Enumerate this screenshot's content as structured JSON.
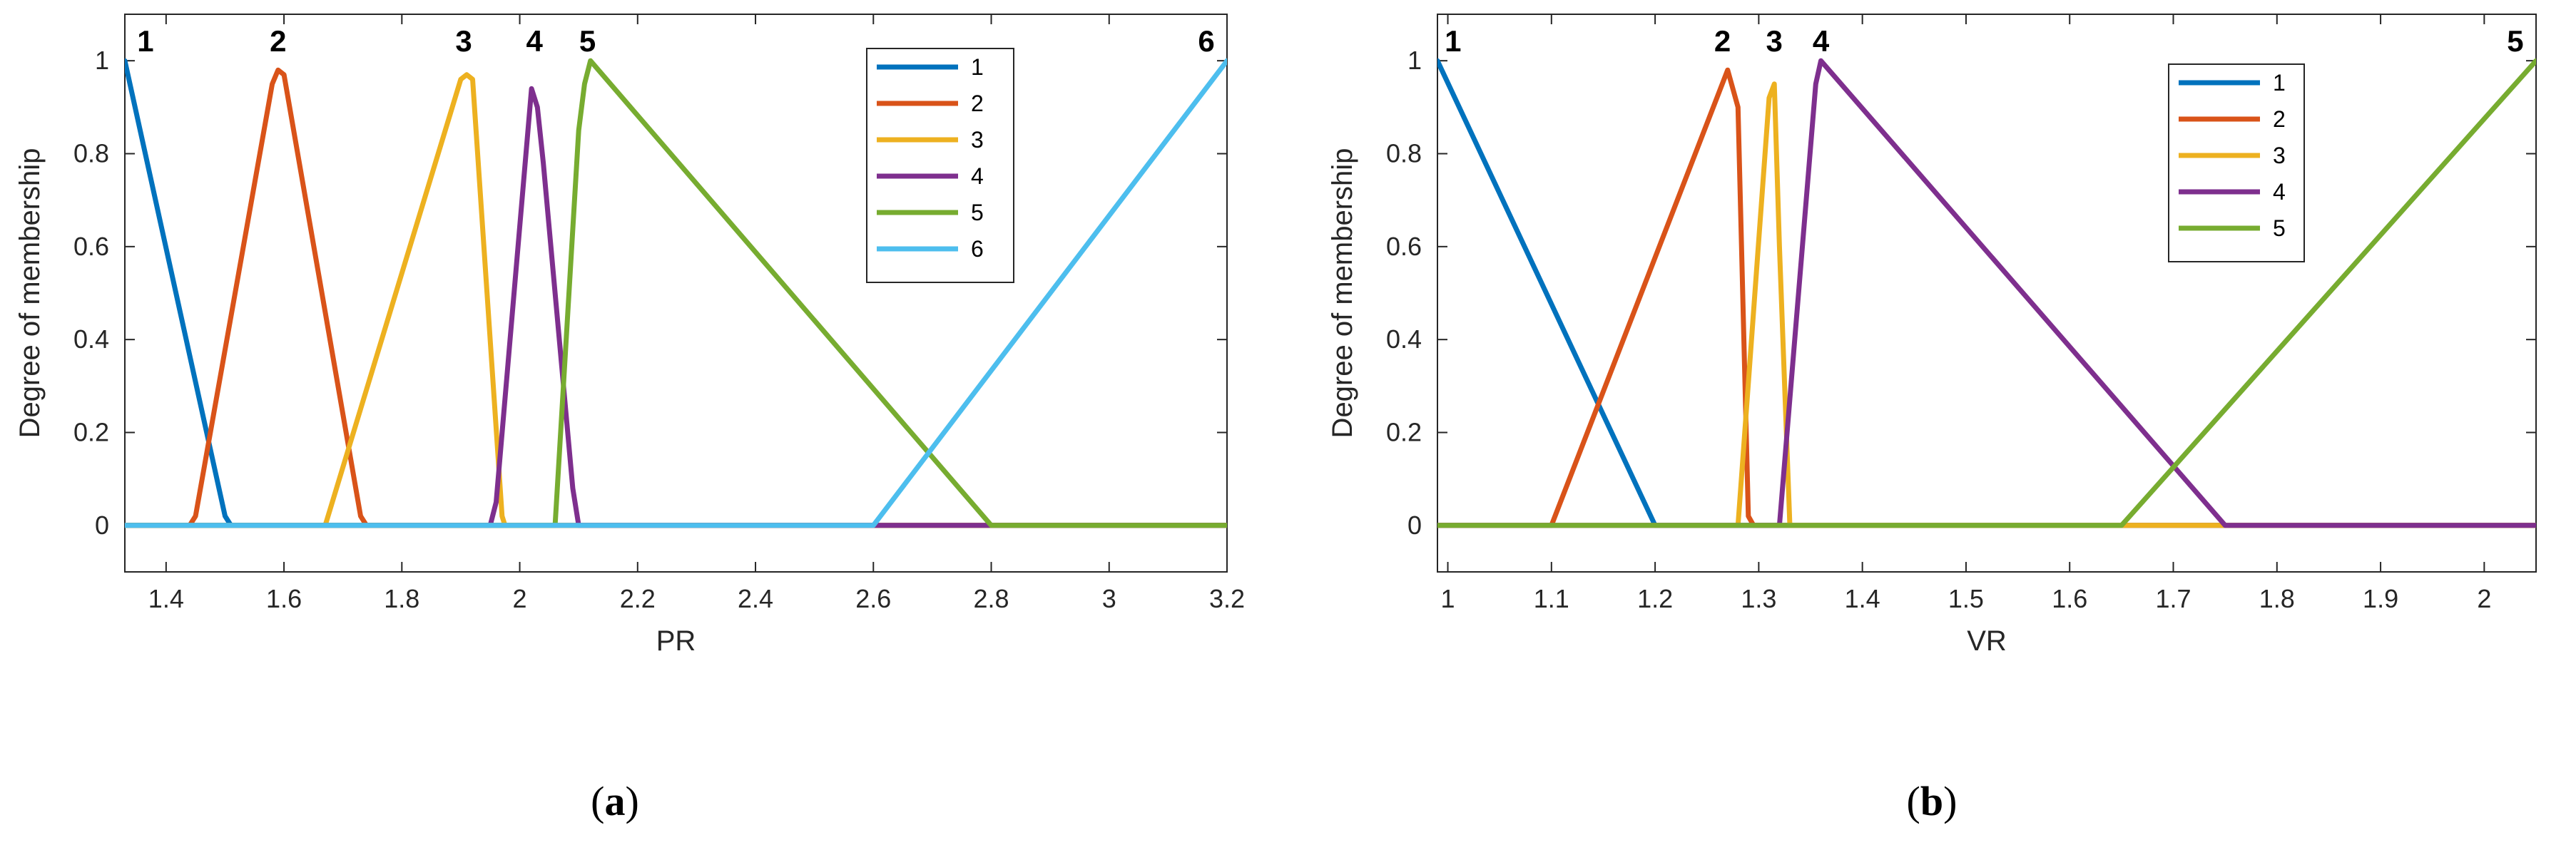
{
  "chart_data": [
    {
      "type": "line",
      "panel_label": "a",
      "caption_open": "(",
      "caption_close": ")",
      "xlabel": "PR",
      "ylabel": "Degree of membership",
      "xlim": [
        1.33,
        3.2
      ],
      "ylim": [
        -0.1,
        1.1
      ],
      "xticks": [
        1.4,
        1.6,
        1.8,
        2,
        2.2,
        2.4,
        2.6,
        2.8,
        3,
        3.2
      ],
      "xtick_labels": [
        "1.4",
        "1.6",
        "1.8",
        "2",
        "2.2",
        "2.4",
        "2.6",
        "2.8",
        "3",
        "3.2"
      ],
      "yticks": [
        0,
        0.2,
        0.4,
        0.6,
        0.8,
        1
      ],
      "ytick_labels": [
        "0",
        "0.2",
        "0.4",
        "0.6",
        "0.8",
        "1"
      ],
      "legend_position": "top-right",
      "series": [
        {
          "name": "1",
          "color": "#0072BD",
          "x": [
            1.33,
            1.5,
            1.51,
            3.2
          ],
          "y": [
            1,
            0.02,
            0,
            0
          ]
        },
        {
          "name": "2",
          "color": "#D95319",
          "x": [
            1.33,
            1.44,
            1.45,
            1.58,
            1.59,
            1.6,
            1.73,
            1.74,
            3.2
          ],
          "y": [
            0,
            0,
            0.02,
            0.95,
            0.98,
            0.97,
            0.02,
            0,
            0
          ]
        },
        {
          "name": "3",
          "color": "#EDB120",
          "x": [
            1.33,
            1.67,
            1.9,
            1.91,
            1.92,
            1.97,
            1.975,
            3.2
          ],
          "y": [
            0,
            0,
            0.96,
            0.97,
            0.96,
            0.02,
            0,
            0
          ]
        },
        {
          "name": "4",
          "color": "#7E2F8E",
          "x": [
            1.33,
            1.95,
            1.96,
            2.02,
            2.03,
            2.04,
            2.09,
            2.1,
            3.2
          ],
          "y": [
            0,
            0,
            0.05,
            0.94,
            0.9,
            0.78,
            0.08,
            0,
            0
          ]
        },
        {
          "name": "5",
          "color": "#77AC30",
          "x": [
            1.33,
            2.06,
            2.1,
            2.11,
            2.12,
            2.8,
            3.2
          ],
          "y": [
            0,
            0,
            0.85,
            0.95,
            1,
            0,
            0
          ]
        },
        {
          "name": "6",
          "color": "#4DBEEE",
          "x": [
            1.33,
            2.6,
            3.2
          ],
          "y": [
            0,
            0,
            1
          ]
        }
      ],
      "peak_labels": [
        {
          "text": "1",
          "x": 1.365
        },
        {
          "text": "2",
          "x": 1.59
        },
        {
          "text": "3",
          "x": 1.905
        },
        {
          "text": "4",
          "x": 2.025
        },
        {
          "text": "5",
          "x": 2.115
        },
        {
          "text": "6",
          "x": 3.165
        }
      ]
    },
    {
      "type": "line",
      "panel_label": "b",
      "caption_open": "(",
      "caption_close": ")",
      "xlabel": "VR",
      "ylabel": "Degree of membership",
      "xlim": [
        0.99,
        2.05
      ],
      "ylim": [
        -0.1,
        1.1
      ],
      "xticks": [
        1,
        1.1,
        1.2,
        1.3,
        1.4,
        1.5,
        1.6,
        1.7,
        1.8,
        1.9,
        2
      ],
      "xtick_labels": [
        "1",
        "1.1",
        "1.2",
        "1.3",
        "1.4",
        "1.5",
        "1.6",
        "1.7",
        "1.8",
        "1.9",
        "2"
      ],
      "yticks": [
        0,
        0.2,
        0.4,
        0.6,
        0.8,
        1
      ],
      "ytick_labels": [
        "0",
        "0.2",
        "0.4",
        "0.6",
        "0.8",
        "1"
      ],
      "legend_position": "top-right",
      "series": [
        {
          "name": "1",
          "color": "#0072BD",
          "x": [
            0.99,
            1.2,
            2.05
          ],
          "y": [
            1,
            0,
            0
          ]
        },
        {
          "name": "2",
          "color": "#D95319",
          "x": [
            0.99,
            1.1,
            1.27,
            1.28,
            1.29,
            1.295,
            2.05
          ],
          "y": [
            0,
            0,
            0.98,
            0.9,
            0.02,
            0,
            0
          ]
        },
        {
          "name": "3",
          "color": "#EDB120",
          "x": [
            0.99,
            1.28,
            1.31,
            1.315,
            1.32,
            1.33,
            1.65,
            1.75,
            2.05
          ],
          "y": [
            0,
            0,
            0.92,
            0.95,
            0.6,
            0,
            0,
            0,
            0
          ]
        },
        {
          "name": "4",
          "color": "#7E2F8E",
          "x": [
            0.99,
            1.32,
            1.355,
            1.36,
            1.75,
            2.05
          ],
          "y": [
            0,
            0,
            0.95,
            1,
            0,
            0
          ]
        },
        {
          "name": "5",
          "color": "#77AC30",
          "x": [
            0.99,
            1.65,
            2.05
          ],
          "y": [
            0,
            0,
            1
          ]
        }
      ],
      "peak_labels": [
        {
          "text": "1",
          "x": 1.005
        },
        {
          "text": "2",
          "x": 1.265
        },
        {
          "text": "3",
          "x": 1.315
        },
        {
          "text": "4",
          "x": 1.36
        },
        {
          "text": "5",
          "x": 2.03
        }
      ]
    }
  ]
}
